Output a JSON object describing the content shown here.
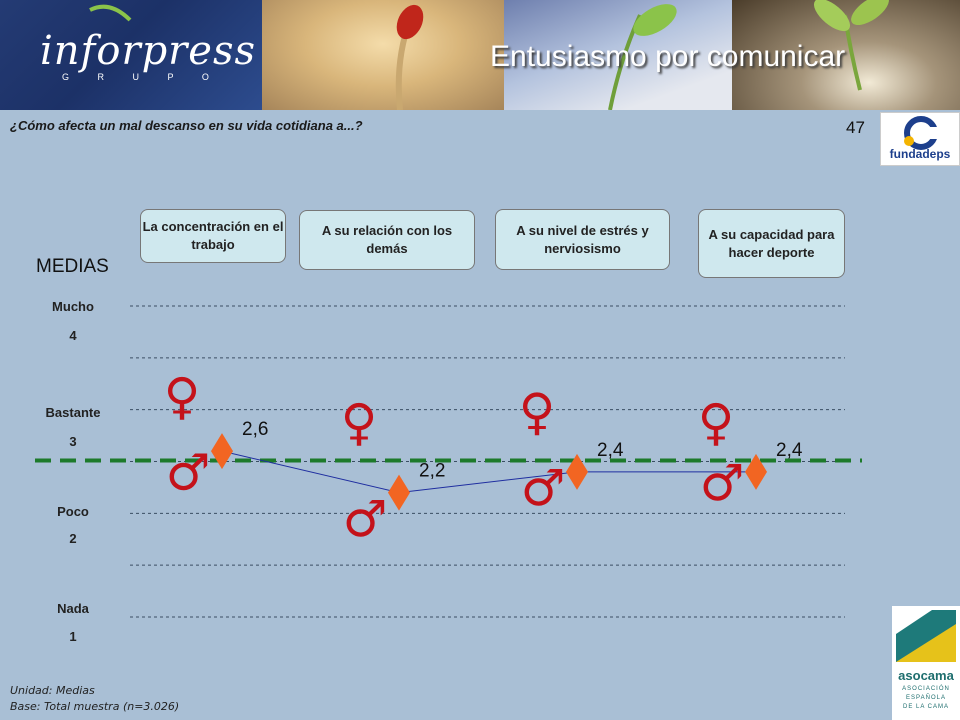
{
  "header": {
    "logo": "inforpress",
    "logo_sub": "G R U P O",
    "title": "Entusiasmo por comunicar"
  },
  "question": "¿Cómo afecta un mal descanso en su vida cotidiana a...?",
  "page_number": "47",
  "fundadeps_label": "fundadeps",
  "medias_label": "MEDIAS",
  "footnote": {
    "unit": "Unidad: Medias",
    "base": "Base: Total muestra (n=3.026)"
  },
  "asocama": {
    "name": "asocama",
    "line1": "ASOCIACIÓN",
    "line2": "ESPAÑOLA",
    "line3": "DE LA CAMA"
  },
  "colors": {
    "total_marker": "#f26522",
    "line": "#1f2ea0",
    "reference_line": "#1d7a2b",
    "category_box": "#cfe8ee"
  },
  "chart_data": {
    "type": "line",
    "categories": [
      "La concentración en el trabajo",
      "A su relación con los demás",
      "A su nivel de estrés y nerviosismo",
      "A su capacidad para hacer deporte"
    ],
    "series": [
      {
        "values": [
          2.6,
          2.2,
          2.4,
          2.4
        ]
      }
    ],
    "data_labels": [
      "2,6",
      "2,2",
      "2,4",
      "2,4"
    ],
    "y_ticks": [
      {
        "label": "Mucho",
        "value": 4
      },
      {
        "label": "Bastante",
        "value": 3
      },
      {
        "label": "Poco",
        "value": 2
      },
      {
        "label": "Nada",
        "value": 1
      }
    ],
    "ylim": [
      1,
      4
    ],
    "grid": true,
    "reference_line_value": 2.5,
    "female_symbol": "♀",
    "male_symbol": "♂",
    "female_values": [
      3.0,
      2.75,
      2.85,
      2.75
    ],
    "male_values": [
      2.5,
      2.05,
      2.35,
      2.4
    ]
  }
}
